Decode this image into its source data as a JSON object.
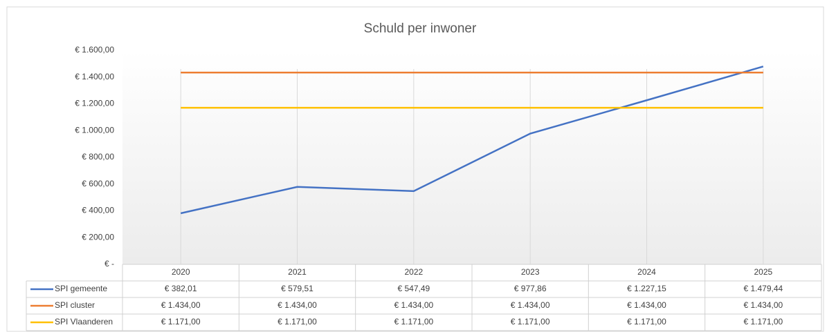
{
  "chart_data": {
    "type": "line",
    "title": "Schuld per inwoner",
    "categories": [
      "2020",
      "2021",
      "2022",
      "2023",
      "2024",
      "2025"
    ],
    "series": [
      {
        "name": "SPI gemeente",
        "color": "#4472c4",
        "values": [
          382.01,
          579.51,
          547.49,
          977.86,
          1227.15,
          1479.44
        ],
        "value_labels": [
          "€ 382,01",
          "€ 579,51",
          "€ 547,49",
          "€ 977,86",
          "€ 1.227,15",
          "€ 1.479,44"
        ]
      },
      {
        "name": "SPI cluster",
        "color": "#ed7d31",
        "values": [
          1434,
          1434,
          1434,
          1434,
          1434,
          1434
        ],
        "value_labels": [
          "€ 1.434,00",
          "€ 1.434,00",
          "€ 1.434,00",
          "€ 1.434,00",
          "€ 1.434,00",
          "€ 1.434,00"
        ]
      },
      {
        "name": "SPI Vlaanderen",
        "color": "#ffc000",
        "values": [
          1171,
          1171,
          1171,
          1171,
          1171,
          1171
        ],
        "value_labels": [
          "€ 1.171,00",
          "€ 1.171,00",
          "€ 1.171,00",
          "€ 1.171,00",
          "€ 1.171,00",
          "€ 1.171,00"
        ]
      }
    ],
    "ylim": [
      0,
      1600
    ],
    "yticks": [
      {
        "value": 0,
        "label": "€ -"
      },
      {
        "value": 200,
        "label": "€ 200,00"
      },
      {
        "value": 400,
        "label": "€ 400,00"
      },
      {
        "value": 600,
        "label": "€ 600,00"
      },
      {
        "value": 800,
        "label": "€ 800,00"
      },
      {
        "value": 1000,
        "label": "€ 1.000,00"
      },
      {
        "value": 1200,
        "label": "€ 1.200,00"
      },
      {
        "value": 1400,
        "label": "€ 1.400,00"
      },
      {
        "value": 1600,
        "label": "€ 1.600,00"
      }
    ]
  }
}
